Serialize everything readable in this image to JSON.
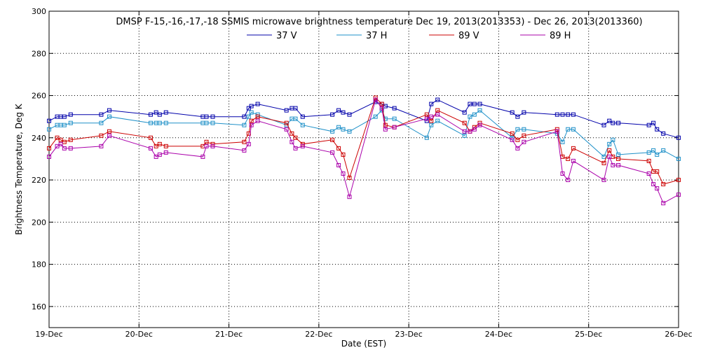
{
  "chart_data": {
    "type": "line",
    "title": "DMSP F-15,-16,-17,-18 SSMIS microwave brightness temperature Dec 19, 2013(2013353) - Dec 26, 2013(2013360)",
    "xlabel": "Date (EST)",
    "ylabel": "Brightness Temperature, Deg K",
    "xlim": [
      0,
      7
    ],
    "ylim": [
      150,
      300
    ],
    "x_ticks": [
      {
        "value": 0,
        "label": "19-Dec"
      },
      {
        "value": 1,
        "label": "20-Dec"
      },
      {
        "value": 2,
        "label": "21-Dec"
      },
      {
        "value": 3,
        "label": "22-Dec"
      },
      {
        "value": 4,
        "label": "23-Dec"
      },
      {
        "value": 5,
        "label": "24-Dec"
      },
      {
        "value": 6,
        "label": "25-Dec"
      },
      {
        "value": 7,
        "label": "26-Dec"
      }
    ],
    "y_ticks": [
      160,
      180,
      200,
      220,
      240,
      260,
      280,
      300
    ],
    "grid": true,
    "legend_position": "top-center",
    "series": [
      {
        "name": "37 V",
        "color": "#0000aa",
        "points": [
          [
            0.0,
            248
          ],
          [
            0.09,
            250
          ],
          [
            0.13,
            250
          ],
          [
            0.17,
            250
          ],
          [
            0.24,
            251
          ],
          [
            0.58,
            251
          ],
          [
            0.67,
            253
          ],
          [
            1.13,
            251
          ],
          [
            1.19,
            252
          ],
          [
            1.23,
            251
          ],
          [
            1.3,
            252
          ],
          [
            1.71,
            250
          ],
          [
            1.75,
            250
          ],
          [
            1.82,
            250
          ],
          [
            2.17,
            250
          ],
          [
            2.22,
            254
          ],
          [
            2.25,
            255
          ],
          [
            2.32,
            256
          ],
          [
            2.64,
            253
          ],
          [
            2.7,
            254
          ],
          [
            2.74,
            254
          ],
          [
            2.82,
            250
          ],
          [
            3.15,
            251
          ],
          [
            3.22,
            253
          ],
          [
            3.27,
            252
          ],
          [
            3.34,
            251
          ],
          [
            3.63,
            257
          ],
          [
            3.7,
            256
          ],
          [
            3.74,
            255
          ],
          [
            3.84,
            254
          ],
          [
            4.2,
            248
          ],
          [
            4.25,
            256
          ],
          [
            4.32,
            258
          ],
          [
            4.62,
            252
          ],
          [
            4.68,
            256
          ],
          [
            4.73,
            256
          ],
          [
            4.79,
            256
          ],
          [
            5.15,
            252
          ],
          [
            5.21,
            250
          ],
          [
            5.28,
            252
          ],
          [
            5.65,
            251
          ],
          [
            5.71,
            251
          ],
          [
            5.77,
            251
          ],
          [
            5.83,
            251
          ],
          [
            6.17,
            246
          ],
          [
            6.23,
            248
          ],
          [
            6.27,
            247
          ],
          [
            6.33,
            247
          ],
          [
            6.67,
            246
          ],
          [
            6.72,
            247
          ],
          [
            6.76,
            244
          ],
          [
            6.83,
            242
          ],
          [
            7.0,
            240
          ]
        ]
      },
      {
        "name": "37 H",
        "color": "#1e90c8",
        "points": [
          [
            0.0,
            244
          ],
          [
            0.09,
            246
          ],
          [
            0.13,
            246
          ],
          [
            0.17,
            246
          ],
          [
            0.24,
            247
          ],
          [
            0.58,
            247
          ],
          [
            0.67,
            250
          ],
          [
            1.13,
            247
          ],
          [
            1.19,
            247
          ],
          [
            1.23,
            247
          ],
          [
            1.3,
            247
          ],
          [
            1.71,
            247
          ],
          [
            1.75,
            247
          ],
          [
            1.82,
            247
          ],
          [
            2.17,
            246
          ],
          [
            2.22,
            250
          ],
          [
            2.25,
            252
          ],
          [
            2.32,
            251
          ],
          [
            2.64,
            246
          ],
          [
            2.7,
            249
          ],
          [
            2.74,
            249
          ],
          [
            2.82,
            246
          ],
          [
            3.15,
            243
          ],
          [
            3.22,
            245
          ],
          [
            3.27,
            244
          ],
          [
            3.34,
            243
          ],
          [
            3.63,
            250
          ],
          [
            3.7,
            253
          ],
          [
            3.74,
            249
          ],
          [
            3.84,
            249
          ],
          [
            4.2,
            240
          ],
          [
            4.25,
            246
          ],
          [
            4.32,
            248
          ],
          [
            4.62,
            241
          ],
          [
            4.68,
            250
          ],
          [
            4.73,
            251
          ],
          [
            4.79,
            253
          ],
          [
            5.15,
            240
          ],
          [
            5.21,
            244
          ],
          [
            5.28,
            244
          ],
          [
            5.65,
            242
          ],
          [
            5.71,
            238
          ],
          [
            5.77,
            244
          ],
          [
            5.83,
            244
          ],
          [
            6.17,
            231
          ],
          [
            6.23,
            237
          ],
          [
            6.27,
            239
          ],
          [
            6.33,
            232
          ],
          [
            6.67,
            233
          ],
          [
            6.72,
            234
          ],
          [
            6.76,
            232
          ],
          [
            6.83,
            234
          ],
          [
            7.0,
            230
          ]
        ]
      },
      {
        "name": "89 V",
        "color": "#cc0000",
        "points": [
          [
            0.0,
            235
          ],
          [
            0.09,
            240
          ],
          [
            0.13,
            239
          ],
          [
            0.17,
            238
          ],
          [
            0.24,
            239
          ],
          [
            0.58,
            241
          ],
          [
            0.67,
            243
          ],
          [
            1.13,
            240
          ],
          [
            1.19,
            236
          ],
          [
            1.23,
            237
          ],
          [
            1.3,
            236
          ],
          [
            1.71,
            236
          ],
          [
            1.75,
            238
          ],
          [
            1.82,
            237
          ],
          [
            2.17,
            238
          ],
          [
            2.22,
            242
          ],
          [
            2.25,
            248
          ],
          [
            2.32,
            250
          ],
          [
            2.64,
            247
          ],
          [
            2.7,
            242
          ],
          [
            2.74,
            240
          ],
          [
            2.82,
            237
          ],
          [
            3.15,
            239
          ],
          [
            3.22,
            235
          ],
          [
            3.27,
            232
          ],
          [
            3.34,
            221
          ],
          [
            3.63,
            259
          ],
          [
            3.7,
            256
          ],
          [
            3.74,
            246
          ],
          [
            3.84,
            245
          ],
          [
            4.2,
            251
          ],
          [
            4.25,
            248
          ],
          [
            4.32,
            253
          ],
          [
            4.62,
            247
          ],
          [
            4.68,
            243
          ],
          [
            4.73,
            245
          ],
          [
            4.79,
            247
          ],
          [
            5.15,
            242
          ],
          [
            5.21,
            239
          ],
          [
            5.28,
            241
          ],
          [
            5.65,
            244
          ],
          [
            5.71,
            231
          ],
          [
            5.77,
            230
          ],
          [
            5.83,
            235
          ],
          [
            6.17,
            228
          ],
          [
            6.23,
            234
          ],
          [
            6.27,
            231
          ],
          [
            6.33,
            230
          ],
          [
            6.67,
            229
          ],
          [
            6.72,
            224
          ],
          [
            6.76,
            224
          ],
          [
            6.83,
            218
          ],
          [
            7.0,
            220
          ]
        ]
      },
      {
        "name": "89 H",
        "color": "#aa00aa",
        "points": [
          [
            0.0,
            231
          ],
          [
            0.09,
            236
          ],
          [
            0.13,
            237
          ],
          [
            0.17,
            235
          ],
          [
            0.24,
            235
          ],
          [
            0.58,
            236
          ],
          [
            0.67,
            241
          ],
          [
            1.13,
            235
          ],
          [
            1.19,
            231
          ],
          [
            1.23,
            232
          ],
          [
            1.3,
            233
          ],
          [
            1.71,
            231
          ],
          [
            1.75,
            236
          ],
          [
            1.82,
            236
          ],
          [
            2.17,
            234
          ],
          [
            2.22,
            237
          ],
          [
            2.25,
            246
          ],
          [
            2.32,
            248
          ],
          [
            2.64,
            244
          ],
          [
            2.7,
            238
          ],
          [
            2.74,
            235
          ],
          [
            2.82,
            236
          ],
          [
            3.15,
            233
          ],
          [
            3.22,
            227
          ],
          [
            3.27,
            223
          ],
          [
            3.34,
            212
          ],
          [
            3.63,
            258
          ],
          [
            3.7,
            254
          ],
          [
            3.74,
            244
          ],
          [
            3.84,
            245
          ],
          [
            4.2,
            249
          ],
          [
            4.25,
            250
          ],
          [
            4.32,
            251
          ],
          [
            4.62,
            243
          ],
          [
            4.68,
            243
          ],
          [
            4.73,
            244
          ],
          [
            4.79,
            246
          ],
          [
            5.15,
            239
          ],
          [
            5.21,
            235
          ],
          [
            5.28,
            238
          ],
          [
            5.65,
            243
          ],
          [
            5.71,
            223
          ],
          [
            5.77,
            220
          ],
          [
            5.83,
            229
          ],
          [
            6.17,
            220
          ],
          [
            6.23,
            231
          ],
          [
            6.27,
            227
          ],
          [
            6.33,
            227
          ],
          [
            6.67,
            223
          ],
          [
            6.72,
            218
          ],
          [
            6.76,
            216
          ],
          [
            6.83,
            209
          ],
          [
            7.0,
            213
          ]
        ]
      }
    ]
  }
}
